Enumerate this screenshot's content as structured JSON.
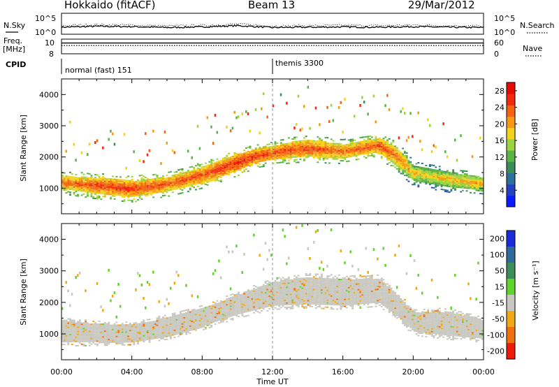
{
  "header": {
    "station": "Hokkaido (fitACF)",
    "beam": "Beam 13",
    "date": "29/Mar/2012"
  },
  "colors": {
    "background": "#ffffff",
    "ground_scatter": "#c8c8c0",
    "axis": "#000000"
  },
  "chart_data": [
    {
      "type": "line",
      "panel": "noise",
      "left_label": "N.Sky",
      "right_label": "N.Search",
      "left_ticks": [
        "10^5",
        "10^0"
      ],
      "right_ticks": [
        "10^5",
        "10^0"
      ],
      "x": [
        "00:00",
        "02:00",
        "04:00",
        "06:00",
        "08:00",
        "10:00",
        "12:00",
        "14:00",
        "16:00",
        "18:00",
        "20:00",
        "22:00",
        "00:00"
      ],
      "series": [
        {
          "values": [
            1.6,
            1.9,
            1.8,
            1.5,
            1.7,
            2.1,
            1.5,
            1.6,
            1.7,
            1.6,
            1.8,
            1.6,
            1.5
          ]
        }
      ]
    },
    {
      "type": "line",
      "panel": "freq-nave",
      "left_label": "Freq.",
      "left_unit": "[MHz]",
      "left_ticks": [
        "10",
        "8"
      ],
      "right_label": "Nave",
      "right_ticks": [
        "60",
        "0"
      ],
      "freq_mhz": 10.2,
      "nave": 34
    },
    {
      "type": "table",
      "panel": "cpid",
      "label": "CPID",
      "segments": [
        {
          "name": "normal (fast) 151",
          "start": "00:00",
          "end": "12:00"
        },
        {
          "name": "themis 3300",
          "start": "12:00",
          "end": "00:00"
        }
      ]
    },
    {
      "type": "heatmap",
      "panel": "power",
      "ylabel": "Slant Range [km]",
      "yticks": [
        1000,
        2000,
        3000,
        4000
      ],
      "ylim": [
        180,
        4500
      ],
      "colorbar_label": "Power [dB]",
      "colorbar_ticks": [
        4,
        8,
        12,
        16,
        20,
        24,
        28
      ],
      "colorbar_range": [
        0,
        30
      ],
      "colormap": [
        "#0a1cff",
        "#2540c0",
        "#2d6e9a",
        "#3c8c5a",
        "#5bb247",
        "#9bd442",
        "#f2d21a",
        "#f59a12",
        "#f46410",
        "#f02a0c",
        "#e60a06"
      ],
      "echo_band": {
        "time_h": [
          0,
          2,
          4,
          6,
          8,
          10,
          11,
          12,
          13,
          14,
          15,
          16,
          17,
          18,
          19,
          20,
          21,
          22,
          24
        ],
        "center_km": [
          1150,
          1050,
          950,
          1100,
          1400,
          1800,
          2000,
          2100,
          2200,
          2250,
          2200,
          2150,
          2250,
          2350,
          2000,
          1450,
          1350,
          1250,
          1100
        ],
        "half_width_km": [
          220,
          260,
          260,
          240,
          260,
          260,
          230,
          230,
          260,
          260,
          260,
          240,
          230,
          240,
          300,
          250,
          250,
          250,
          220
        ],
        "power_db": [
          24,
          26,
          27,
          25,
          26,
          28,
          27,
          26,
          26,
          26,
          25,
          24,
          25,
          26,
          24,
          20,
          19,
          20,
          21
        ]
      }
    },
    {
      "type": "heatmap",
      "panel": "velocity",
      "ylabel": "Slant Range [km]",
      "yticks": [
        1000,
        2000,
        3000,
        4000
      ],
      "ylim": [
        180,
        4500
      ],
      "xlabel": "Time UT",
      "xticks": [
        "00:00",
        "04:00",
        "08:00",
        "12:00",
        "16:00",
        "20:00",
        "00:00"
      ],
      "xlim_hours": [
        0,
        24
      ],
      "colorbar_label": "Velocity [m s⁻¹]",
      "colorbar_ticks": [
        200,
        100,
        50,
        15,
        -15,
        -50,
        -100,
        -200
      ],
      "colorbar_colors": [
        "#1c2ad8",
        "#2f6a9a",
        "#3c8d5a",
        "#5fd42c",
        "#c8c8c0",
        "#f0a818",
        "#f07010",
        "#ee1a0c"
      ],
      "ground_scatter_band": {
        "time_h": [
          0,
          2,
          4,
          6,
          8,
          10,
          12,
          14,
          16,
          18,
          19,
          20,
          22,
          24
        ],
        "center_km": [
          1050,
          1000,
          1000,
          1200,
          1500,
          1900,
          2250,
          2350,
          2300,
          2350,
          1900,
          1350,
          1300,
          1100
        ],
        "half_width_km": [
          350,
          300,
          280,
          300,
          300,
          320,
          380,
          420,
          420,
          380,
          350,
          320,
          380,
          300
        ]
      }
    }
  ]
}
